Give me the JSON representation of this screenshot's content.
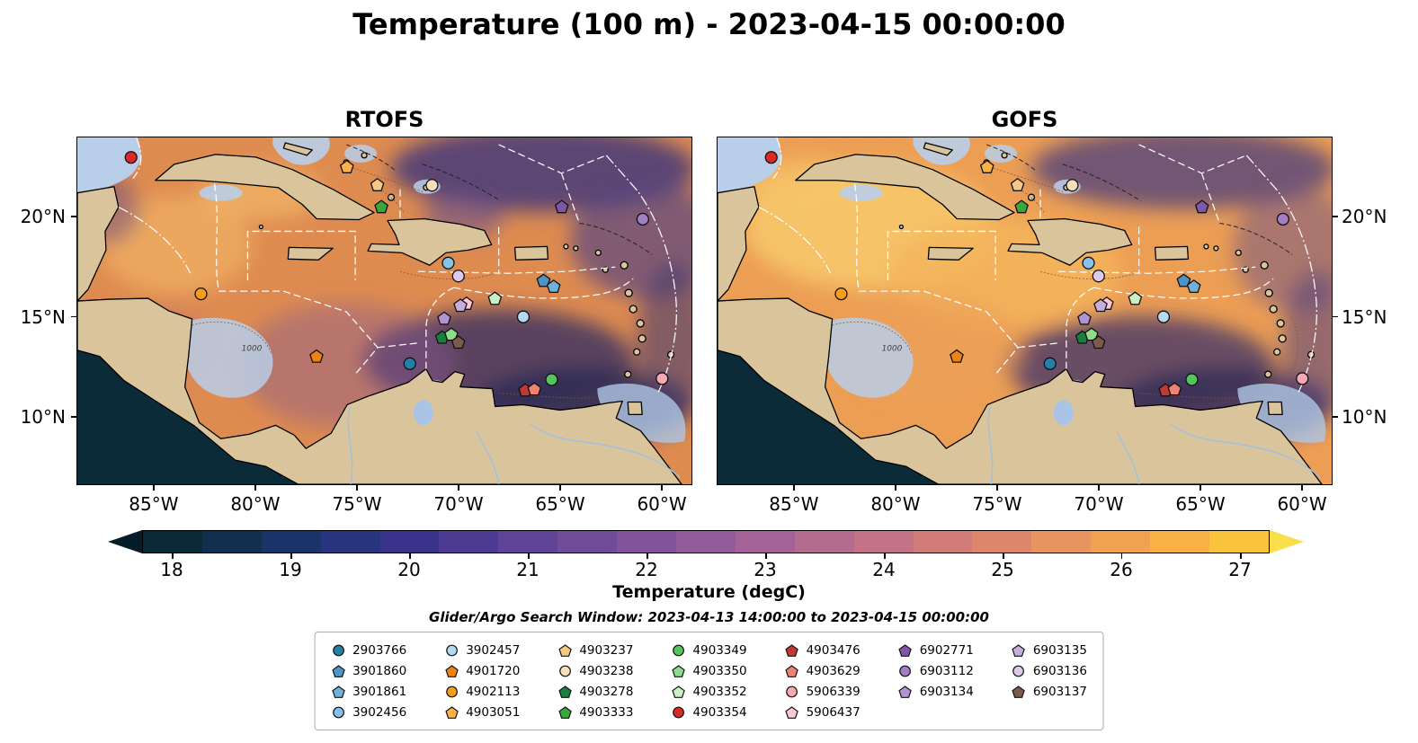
{
  "title": "Temperature (100 m) - 2023-04-15 00:00:00",
  "panels": [
    {
      "title": "RTOFS"
    },
    {
      "title": "GOFS"
    }
  ],
  "colorbar": {
    "label": "Temperature (degC)",
    "ticks": [
      18,
      19,
      20,
      21,
      22,
      23,
      24,
      25,
      26,
      27
    ],
    "vmin": 17.75,
    "vmax": 27.25,
    "under": "#041d29",
    "over": "#f9e04a",
    "segment_colors": [
      "#0b2836",
      "#11304f",
      "#1a3368",
      "#28347e",
      "#3a338b",
      "#4d3b93",
      "#5f4396",
      "#704b98",
      "#81539a",
      "#925b9a",
      "#a36397",
      "#b46b90",
      "#c47386",
      "#d27c7a",
      "#de866c",
      "#e9935e",
      "#f1a150",
      "#f7b145",
      "#fac33c"
    ]
  },
  "search_window": "Glider/Argo Search Window: 2023-04-13 14:00:00 to 2023-04-15 00:00:00",
  "legend": {
    "ncols": 7
  },
  "chart_data": {
    "type": "heatmap",
    "subtype": "geographic-temperature-field-comparison",
    "title": "Temperature (100 m) - 2023-04-15 00:00:00",
    "panels": [
      "RTOFS",
      "GOFS"
    ],
    "units": "degC",
    "colorbar_range": [
      18,
      27
    ],
    "lon_range": [
      -88.8,
      -58.5
    ],
    "lat_range": [
      6.6,
      24.0
    ],
    "x_ticks": [
      {
        "label": "85°W",
        "lon": -85
      },
      {
        "label": "80°W",
        "lon": -80
      },
      {
        "label": "75°W",
        "lon": -75
      },
      {
        "label": "70°W",
        "lon": -70
      },
      {
        "label": "65°W",
        "lon": -65
      },
      {
        "label": "60°W",
        "lon": -60
      }
    ],
    "y_ticks": [
      {
        "label": "20°N",
        "lat": 20
      },
      {
        "label": "15°N",
        "lat": 15
      },
      {
        "label": "10°N",
        "lat": 10
      }
    ],
    "contour_labels": [
      {
        "text": "1000",
        "lon": -80.7,
        "lat": 13.3
      }
    ],
    "floats": [
      {
        "id": "2903766",
        "shape": "circle",
        "color": "#2580a6",
        "lon": -72.4,
        "lat": 12.65
      },
      {
        "id": "3901860",
        "shape": "pentagon",
        "color": "#4f94c9",
        "lon": -65.8,
        "lat": 16.8
      },
      {
        "id": "3901861",
        "shape": "pentagon",
        "color": "#71b0d8",
        "lon": -65.3,
        "lat": 16.5
      },
      {
        "id": "3902456",
        "shape": "circle",
        "color": "#85c1ea",
        "lon": -70.5,
        "lat": 17.7
      },
      {
        "id": "3902457",
        "shape": "circle",
        "color": "#b5d9f0",
        "lon": -66.8,
        "lat": 15.0
      },
      {
        "id": "4901720",
        "shape": "pentagon",
        "color": "#f0820f",
        "lon": -77.0,
        "lat": 13.0
      },
      {
        "id": "4902113",
        "shape": "circle",
        "color": "#f59d1e",
        "lon": -82.7,
        "lat": 16.15
      },
      {
        "id": "4903051",
        "shape": "pentagon",
        "color": "#f9b24a",
        "lon": -75.5,
        "lat": 22.5
      },
      {
        "id": "4903237",
        "shape": "pentagon",
        "color": "#f4c887",
        "lon": -74.0,
        "lat": 21.6
      },
      {
        "id": "4903238",
        "shape": "circle",
        "color": "#f8debb",
        "lon": -71.3,
        "lat": 21.6
      },
      {
        "id": "4903278",
        "shape": "pentagon",
        "color": "#1a7f3c",
        "lon": -70.8,
        "lat": 13.95
      },
      {
        "id": "4903333",
        "shape": "pentagon",
        "color": "#39a83b",
        "lon": -73.8,
        "lat": 20.5
      },
      {
        "id": "4903349",
        "shape": "circle",
        "color": "#55c45e",
        "lon": -65.4,
        "lat": 11.85
      },
      {
        "id": "4903350",
        "shape": "pentagon",
        "color": "#8edc8b",
        "lon": -70.35,
        "lat": 14.1
      },
      {
        "id": "4903352",
        "shape": "pentagon",
        "color": "#c9f0c4",
        "lon": -68.2,
        "lat": 15.9
      },
      {
        "id": "4903354",
        "shape": "circle",
        "color": "#d92b26",
        "lon": -86.15,
        "lat": 23.0
      },
      {
        "id": "4903476",
        "shape": "pentagon",
        "color": "#bf3a35",
        "lon": -66.7,
        "lat": 11.3
      },
      {
        "id": "4903629",
        "shape": "pentagon",
        "color": "#ef8272",
        "lon": -66.25,
        "lat": 11.35
      },
      {
        "id": "5906339",
        "shape": "circle",
        "color": "#f6a9b4",
        "lon": -59.95,
        "lat": 11.9
      },
      {
        "id": "5906437",
        "shape": "pentagon",
        "color": "#fac9d2",
        "lon": -69.6,
        "lat": 15.65
      },
      {
        "id": "6902771",
        "shape": "pentagon",
        "color": "#7e57a8",
        "lon": -64.9,
        "lat": 20.5
      },
      {
        "id": "6903112",
        "shape": "circle",
        "color": "#a07fc4",
        "lon": -60.9,
        "lat": 19.9
      },
      {
        "id": "6903134",
        "shape": "pentagon",
        "color": "#b093d0",
        "lon": -70.7,
        "lat": 14.9
      },
      {
        "id": "6903135",
        "shape": "pentagon",
        "color": "#c6addc",
        "lon": -69.9,
        "lat": 15.55
      },
      {
        "id": "6903136",
        "shape": "circle",
        "color": "#ddc9ec",
        "lon": -70.0,
        "lat": 17.05
      },
      {
        "id": "6903137",
        "shape": "pentagon",
        "color": "#7c5a4c",
        "lon": -70.0,
        "lat": 13.7
      }
    ]
  }
}
